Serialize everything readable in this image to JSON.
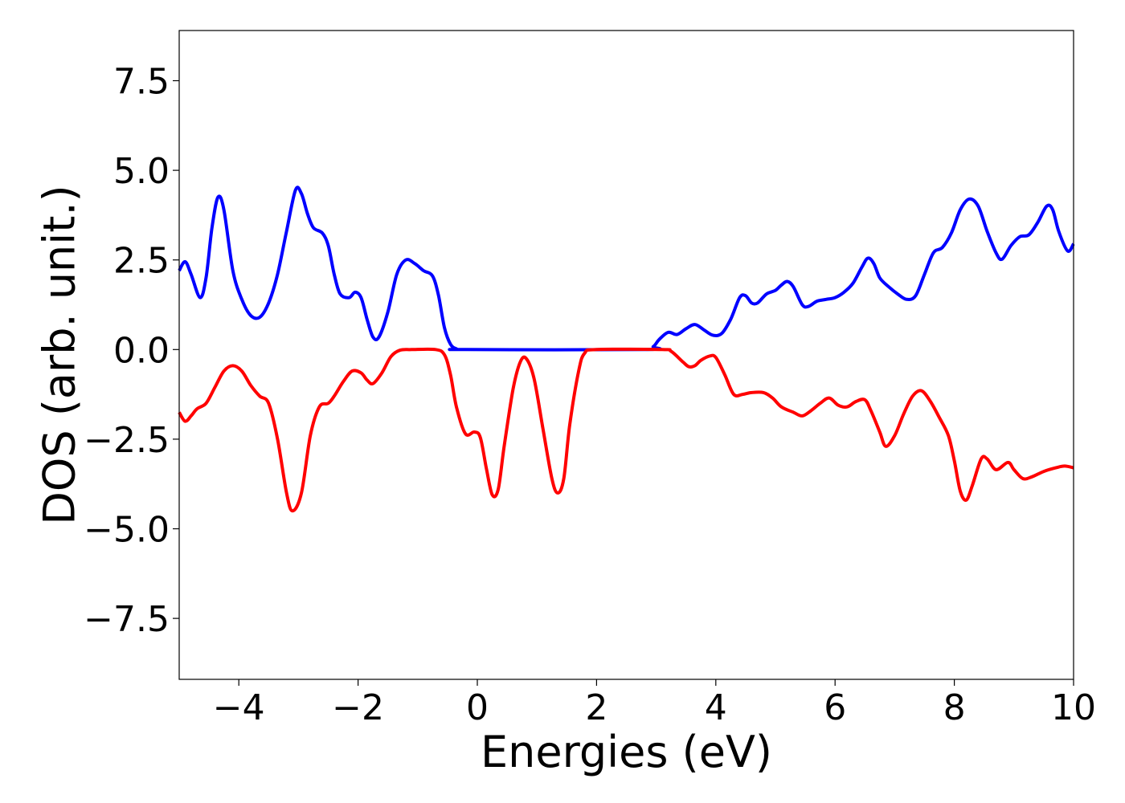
{
  "chart_data": {
    "type": "line",
    "title": "",
    "xlabel": "Energies (eV)",
    "ylabel": "DOS (arb. unit.)",
    "xlim": [
      -5,
      10
    ],
    "ylim": [
      -9.2,
      8.9
    ],
    "xticks": [
      -4,
      -2,
      0,
      2,
      4,
      6,
      8,
      10
    ],
    "xtick_labels": [
      "−4",
      "−2",
      "0",
      "2",
      "4",
      "6",
      "8",
      "10"
    ],
    "yticks": [
      7.5,
      5.0,
      2.5,
      0.0,
      -2.5,
      -5.0,
      -7.5
    ],
    "ytick_labels": [
      "7.5",
      "5.0",
      "2.5",
      "0.0",
      "−2.5",
      "−5.0",
      "−7.5"
    ],
    "grid": false,
    "series": [
      {
        "color": "#0000ff",
        "points": [
          [
            -5.0,
            2.2
          ],
          [
            -4.9,
            2.45
          ],
          [
            -4.8,
            2.1
          ],
          [
            -4.65,
            1.45
          ],
          [
            -4.55,
            2.0
          ],
          [
            -4.45,
            3.4
          ],
          [
            -4.35,
            4.25
          ],
          [
            -4.25,
            3.9
          ],
          [
            -4.1,
            2.2
          ],
          [
            -3.95,
            1.4
          ],
          [
            -3.8,
            0.95
          ],
          [
            -3.65,
            0.9
          ],
          [
            -3.5,
            1.3
          ],
          [
            -3.35,
            2.1
          ],
          [
            -3.2,
            3.3
          ],
          [
            -3.05,
            4.45
          ],
          [
            -2.95,
            4.35
          ],
          [
            -2.85,
            3.8
          ],
          [
            -2.75,
            3.4
          ],
          [
            -2.6,
            3.25
          ],
          [
            -2.5,
            2.9
          ],
          [
            -2.4,
            2.1
          ],
          [
            -2.3,
            1.55
          ],
          [
            -2.15,
            1.45
          ],
          [
            -2.05,
            1.6
          ],
          [
            -1.95,
            1.45
          ],
          [
            -1.85,
            0.85
          ],
          [
            -1.75,
            0.35
          ],
          [
            -1.65,
            0.35
          ],
          [
            -1.5,
            1.05
          ],
          [
            -1.35,
            2.1
          ],
          [
            -1.2,
            2.5
          ],
          [
            -1.05,
            2.4
          ],
          [
            -0.9,
            2.2
          ],
          [
            -0.75,
            2.05
          ],
          [
            -0.65,
            1.5
          ],
          [
            -0.55,
            0.6
          ],
          [
            -0.45,
            0.15
          ],
          [
            -0.35,
            0.02
          ],
          [
            -0.2,
            0.0
          ],
          [
            2.8,
            0.0
          ],
          [
            2.95,
            0.08
          ],
          [
            3.05,
            0.28
          ],
          [
            3.2,
            0.48
          ],
          [
            3.35,
            0.42
          ],
          [
            3.5,
            0.58
          ],
          [
            3.65,
            0.7
          ],
          [
            3.8,
            0.55
          ],
          [
            3.95,
            0.4
          ],
          [
            4.1,
            0.45
          ],
          [
            4.25,
            0.85
          ],
          [
            4.4,
            1.45
          ],
          [
            4.5,
            1.5
          ],
          [
            4.6,
            1.3
          ],
          [
            4.7,
            1.3
          ],
          [
            4.85,
            1.55
          ],
          [
            5.0,
            1.65
          ],
          [
            5.1,
            1.8
          ],
          [
            5.2,
            1.9
          ],
          [
            5.3,
            1.75
          ],
          [
            5.45,
            1.25
          ],
          [
            5.55,
            1.2
          ],
          [
            5.7,
            1.35
          ],
          [
            5.85,
            1.4
          ],
          [
            6.0,
            1.45
          ],
          [
            6.15,
            1.6
          ],
          [
            6.3,
            1.85
          ],
          [
            6.45,
            2.3
          ],
          [
            6.55,
            2.55
          ],
          [
            6.65,
            2.4
          ],
          [
            6.75,
            2.0
          ],
          [
            6.9,
            1.75
          ],
          [
            7.05,
            1.55
          ],
          [
            7.2,
            1.4
          ],
          [
            7.35,
            1.5
          ],
          [
            7.5,
            2.1
          ],
          [
            7.65,
            2.7
          ],
          [
            7.8,
            2.85
          ],
          [
            7.95,
            3.25
          ],
          [
            8.1,
            3.9
          ],
          [
            8.25,
            4.2
          ],
          [
            8.4,
            4.0
          ],
          [
            8.55,
            3.3
          ],
          [
            8.7,
            2.7
          ],
          [
            8.8,
            2.52
          ],
          [
            8.95,
            2.9
          ],
          [
            9.1,
            3.15
          ],
          [
            9.25,
            3.2
          ],
          [
            9.4,
            3.55
          ],
          [
            9.55,
            4.0
          ],
          [
            9.65,
            3.9
          ],
          [
            9.75,
            3.3
          ],
          [
            9.9,
            2.75
          ],
          [
            10.0,
            2.95
          ]
        ]
      },
      {
        "color": "#ff0000",
        "points": [
          [
            -5.0,
            -1.75
          ],
          [
            -4.9,
            -2.0
          ],
          [
            -4.8,
            -1.85
          ],
          [
            -4.7,
            -1.65
          ],
          [
            -4.55,
            -1.5
          ],
          [
            -4.4,
            -1.05
          ],
          [
            -4.25,
            -0.6
          ],
          [
            -4.1,
            -0.45
          ],
          [
            -3.95,
            -0.6
          ],
          [
            -3.8,
            -1.0
          ],
          [
            -3.65,
            -1.3
          ],
          [
            -3.5,
            -1.5
          ],
          [
            -3.35,
            -2.5
          ],
          [
            -3.2,
            -4.0
          ],
          [
            -3.1,
            -4.5
          ],
          [
            -2.95,
            -4.0
          ],
          [
            -2.8,
            -2.4
          ],
          [
            -2.65,
            -1.6
          ],
          [
            -2.5,
            -1.5
          ],
          [
            -2.4,
            -1.3
          ],
          [
            -2.25,
            -0.9
          ],
          [
            -2.1,
            -0.6
          ],
          [
            -1.95,
            -0.65
          ],
          [
            -1.85,
            -0.85
          ],
          [
            -1.75,
            -0.95
          ],
          [
            -1.6,
            -0.65
          ],
          [
            -1.45,
            -0.2
          ],
          [
            -1.3,
            -0.02
          ],
          [
            -1.1,
            0.0
          ],
          [
            -0.7,
            0.0
          ],
          [
            -0.55,
            -0.15
          ],
          [
            -0.45,
            -0.7
          ],
          [
            -0.35,
            -1.6
          ],
          [
            -0.2,
            -2.35
          ],
          [
            -0.05,
            -2.3
          ],
          [
            0.05,
            -2.45
          ],
          [
            0.15,
            -3.3
          ],
          [
            0.25,
            -4.05
          ],
          [
            0.35,
            -3.9
          ],
          [
            0.45,
            -2.7
          ],
          [
            0.6,
            -1.1
          ],
          [
            0.72,
            -0.35
          ],
          [
            0.82,
            -0.25
          ],
          [
            0.95,
            -0.8
          ],
          [
            1.1,
            -2.2
          ],
          [
            1.25,
            -3.6
          ],
          [
            1.35,
            -4.0
          ],
          [
            1.45,
            -3.6
          ],
          [
            1.55,
            -2.1
          ],
          [
            1.7,
            -0.6
          ],
          [
            1.8,
            -0.1
          ],
          [
            2.0,
            0.0
          ],
          [
            3.1,
            0.0
          ],
          [
            3.25,
            -0.05
          ],
          [
            3.45,
            -0.35
          ],
          [
            3.55,
            -0.48
          ],
          [
            3.65,
            -0.45
          ],
          [
            3.75,
            -0.3
          ],
          [
            3.9,
            -0.18
          ],
          [
            4.0,
            -0.22
          ],
          [
            4.15,
            -0.7
          ],
          [
            4.3,
            -1.25
          ],
          [
            4.45,
            -1.25
          ],
          [
            4.6,
            -1.2
          ],
          [
            4.8,
            -1.2
          ],
          [
            4.95,
            -1.35
          ],
          [
            5.1,
            -1.6
          ],
          [
            5.3,
            -1.75
          ],
          [
            5.45,
            -1.85
          ],
          [
            5.6,
            -1.7
          ],
          [
            5.75,
            -1.5
          ],
          [
            5.9,
            -1.35
          ],
          [
            6.05,
            -1.55
          ],
          [
            6.2,
            -1.6
          ],
          [
            6.35,
            -1.45
          ],
          [
            6.5,
            -1.4
          ],
          [
            6.6,
            -1.7
          ],
          [
            6.75,
            -2.3
          ],
          [
            6.85,
            -2.7
          ],
          [
            7.0,
            -2.4
          ],
          [
            7.15,
            -1.8
          ],
          [
            7.3,
            -1.3
          ],
          [
            7.45,
            -1.15
          ],
          [
            7.6,
            -1.45
          ],
          [
            7.75,
            -1.9
          ],
          [
            7.9,
            -2.4
          ],
          [
            8.0,
            -3.1
          ],
          [
            8.1,
            -3.95
          ],
          [
            8.2,
            -4.2
          ],
          [
            8.3,
            -3.8
          ],
          [
            8.45,
            -3.05
          ],
          [
            8.55,
            -3.05
          ],
          [
            8.7,
            -3.35
          ],
          [
            8.9,
            -3.15
          ],
          [
            9.0,
            -3.35
          ],
          [
            9.15,
            -3.6
          ],
          [
            9.3,
            -3.55
          ],
          [
            9.5,
            -3.4
          ],
          [
            9.7,
            -3.3
          ],
          [
            9.85,
            -3.25
          ],
          [
            10.0,
            -3.3
          ]
        ]
      }
    ]
  }
}
